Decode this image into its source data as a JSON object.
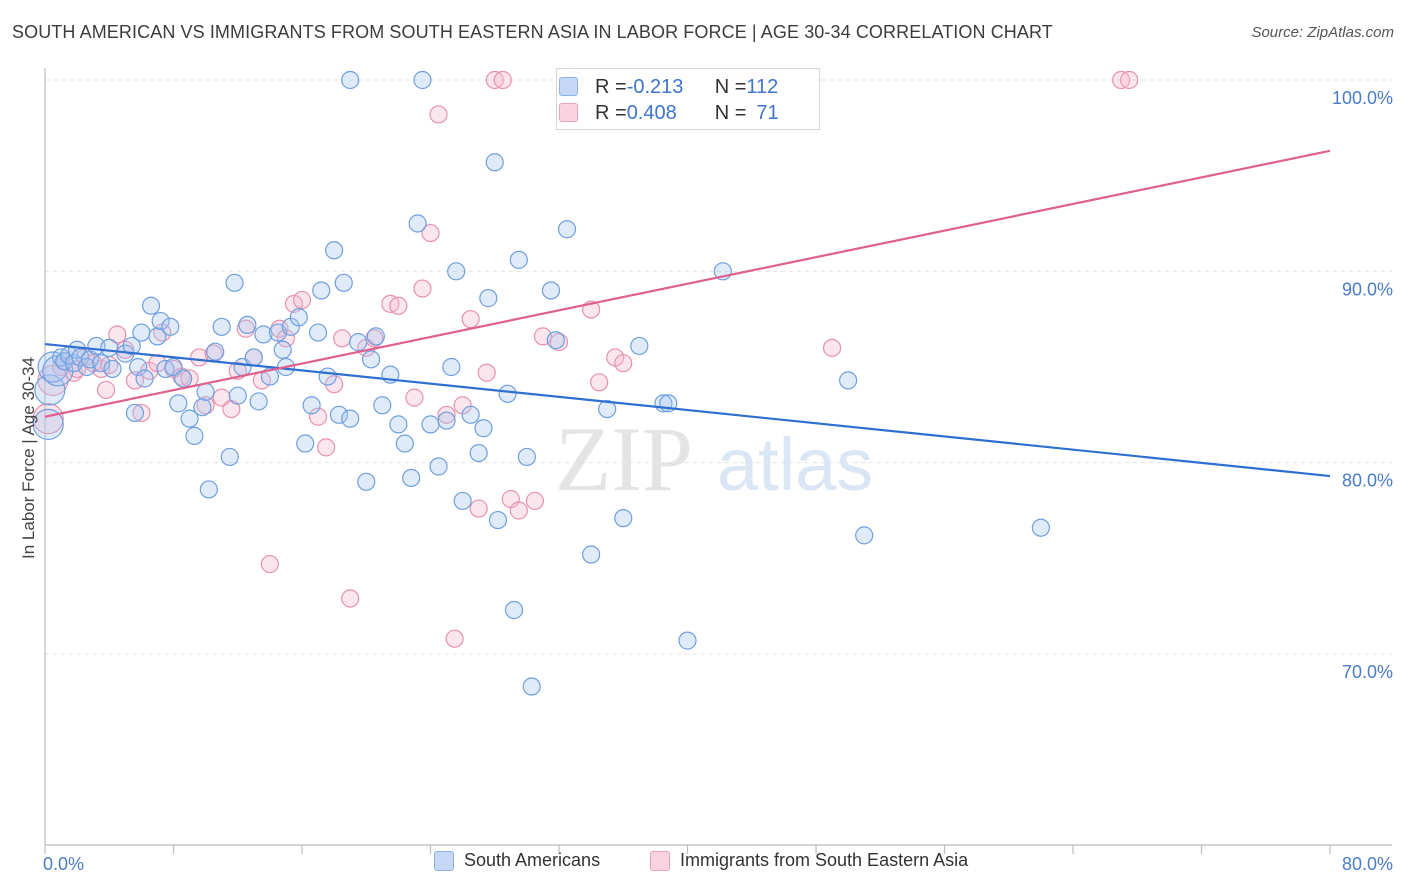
{
  "title": "SOUTH AMERICAN VS IMMIGRANTS FROM SOUTH EASTERN ASIA IN LABOR FORCE | AGE 30-34 CORRELATION CHART",
  "source": "Source: ZipAtlas.com",
  "watermark": {
    "zip": "ZIP",
    "atlas": "atlas"
  },
  "stats": {
    "rows": [
      {
        "r_label": "R = ",
        "r_value": "-0.213",
        "n_label": "N = ",
        "n_value": "112",
        "color": "#a9c6f0"
      },
      {
        "r_label": "R = ",
        "r_value": "0.408",
        "n_label": "N = ",
        "n_value": "71",
        "color": "#f5b6cb"
      }
    ]
  },
  "chart_data": {
    "type": "scatter",
    "ylabel": "In Labor Force | Age 30-34",
    "xlim": [
      0,
      80
    ],
    "ylim": [
      60,
      100
    ],
    "x_tick_labels": [
      "0.0%",
      "80.0%"
    ],
    "y_ticks": [
      {
        "value": 100,
        "label": "100.0%"
      },
      {
        "value": 90,
        "label": "90.0%"
      },
      {
        "value": 80,
        "label": "80.0%"
      },
      {
        "value": 70,
        "label": "70.0%"
      }
    ],
    "grid": true,
    "legend_position": "bottom",
    "series": [
      {
        "name": "South Americans",
        "color": "#6f9fe0",
        "fill": "rgba(167,197,240,0.35)",
        "line_color": "#2f6fd0",
        "trend": {
          "x": [
            0,
            80
          ],
          "y": [
            86.2,
            79.3
          ]
        },
        "points": [
          [
            0.2,
            82
          ],
          [
            0.3,
            83.8
          ],
          [
            0.5,
            85
          ],
          [
            0.8,
            84.8
          ],
          [
            1.0,
            85.5
          ],
          [
            1.2,
            85.3
          ],
          [
            1.5,
            85.6
          ],
          [
            1.8,
            85.2
          ],
          [
            2.0,
            85.9
          ],
          [
            2.2,
            85.5
          ],
          [
            2.6,
            85.0
          ],
          [
            2.8,
            85.4
          ],
          [
            3.2,
            86.1
          ],
          [
            3.5,
            85.2
          ],
          [
            4.0,
            86.0
          ],
          [
            4.2,
            84.9
          ],
          [
            5.0,
            85.7
          ],
          [
            5.4,
            86.1
          ],
          [
            5.6,
            82.6
          ],
          [
            5.8,
            85.0
          ],
          [
            6.0,
            86.8
          ],
          [
            6.2,
            84.4
          ],
          [
            6.6,
            88.2
          ],
          [
            7.0,
            86.6
          ],
          [
            7.2,
            87.4
          ],
          [
            7.5,
            84.9
          ],
          [
            7.8,
            87.1
          ],
          [
            8.0,
            85.0
          ],
          [
            8.3,
            83.1
          ],
          [
            8.6,
            84.4
          ],
          [
            9.0,
            82.3
          ],
          [
            9.3,
            81.4
          ],
          [
            9.8,
            82.9
          ],
          [
            10.0,
            83.7
          ],
          [
            10.2,
            78.6
          ],
          [
            10.6,
            85.8
          ],
          [
            11.0,
            87.1
          ],
          [
            11.5,
            80.3
          ],
          [
            11.8,
            89.4
          ],
          [
            12.0,
            83.5
          ],
          [
            12.3,
            85.0
          ],
          [
            12.6,
            87.2
          ],
          [
            13.0,
            85.5
          ],
          [
            13.3,
            83.2
          ],
          [
            13.6,
            86.7
          ],
          [
            14.0,
            84.5
          ],
          [
            14.5,
            86.8
          ],
          [
            14.8,
            85.9
          ],
          [
            15.0,
            85.0
          ],
          [
            15.3,
            87.1
          ],
          [
            15.8,
            87.6
          ],
          [
            16.2,
            81.0
          ],
          [
            16.6,
            83.0
          ],
          [
            17.0,
            86.8
          ],
          [
            17.2,
            89.0
          ],
          [
            17.6,
            84.5
          ],
          [
            18.0,
            91.1
          ],
          [
            18.3,
            82.5
          ],
          [
            18.6,
            89.4
          ],
          [
            19.0,
            82.3
          ],
          [
            19.5,
            86.3
          ],
          [
            20.0,
            79.0
          ],
          [
            20.3,
            85.4
          ],
          [
            20.6,
            86.6
          ],
          [
            21.0,
            83.0
          ],
          [
            21.5,
            84.6
          ],
          [
            22.0,
            82.0
          ],
          [
            22.4,
            81.0
          ],
          [
            22.8,
            79.2
          ],
          [
            23.2,
            92.5
          ],
          [
            23.5,
            100
          ],
          [
            24.0,
            82.0
          ],
          [
            24.5,
            79.8
          ],
          [
            25.0,
            82.2
          ],
          [
            25.3,
            85.0
          ],
          [
            25.6,
            90.0
          ],
          [
            26.0,
            78.0
          ],
          [
            26.5,
            82.5
          ],
          [
            27.0,
            80.5
          ],
          [
            27.3,
            81.8
          ],
          [
            27.6,
            88.6
          ],
          [
            28.0,
            95.7
          ],
          [
            28.2,
            77.0
          ],
          [
            28.8,
            83.6
          ],
          [
            29.2,
            72.3
          ],
          [
            29.5,
            90.6
          ],
          [
            30.0,
            80.3
          ],
          [
            30.3,
            68.3
          ],
          [
            31.5,
            89.0
          ],
          [
            31.8,
            86.4
          ],
          [
            32.5,
            92.2
          ],
          [
            33.0,
            100
          ],
          [
            34.0,
            75.2
          ],
          [
            35.0,
            82.8
          ],
          [
            36.0,
            77.1
          ],
          [
            37.0,
            86.1
          ],
          [
            38.5,
            83.1
          ],
          [
            38.8,
            83.1
          ],
          [
            40.0,
            70.7
          ],
          [
            42.2,
            90.0
          ],
          [
            50.0,
            84.3
          ],
          [
            51.0,
            76.2
          ],
          [
            62.0,
            76.6
          ],
          [
            19.0,
            100
          ]
        ]
      },
      {
        "name": "Immigrants from South Eastern Asia",
        "color": "#e891ae",
        "fill": "rgba(245,182,203,0.35)",
        "line_color": "#e0608d",
        "trend": {
          "x": [
            0,
            80
          ],
          "y": [
            82.4,
            96.3
          ]
        },
        "points": [
          [
            0.2,
            82.3
          ],
          [
            0.5,
            84.3
          ],
          [
            1.0,
            85.0
          ],
          [
            1.2,
            85.3
          ],
          [
            1.8,
            84.7
          ],
          [
            2.0,
            84.9
          ],
          [
            2.5,
            85.5
          ],
          [
            3.0,
            85.2
          ],
          [
            3.5,
            84.9
          ],
          [
            3.8,
            83.8
          ],
          [
            4.0,
            85.1
          ],
          [
            4.5,
            86.7
          ],
          [
            5.0,
            85.9
          ],
          [
            5.6,
            84.3
          ],
          [
            6.0,
            82.6
          ],
          [
            6.5,
            84.8
          ],
          [
            7.0,
            85.2
          ],
          [
            7.3,
            86.8
          ],
          [
            8.0,
            84.9
          ],
          [
            8.5,
            84.5
          ],
          [
            9.0,
            84.4
          ],
          [
            9.6,
            85.5
          ],
          [
            10.0,
            83.0
          ],
          [
            10.5,
            85.7
          ],
          [
            11.0,
            83.4
          ],
          [
            11.6,
            82.8
          ],
          [
            12.0,
            84.8
          ],
          [
            12.5,
            87.0
          ],
          [
            13.0,
            85.5
          ],
          [
            13.5,
            84.3
          ],
          [
            14.0,
            74.7
          ],
          [
            14.6,
            87.0
          ],
          [
            15.0,
            86.5
          ],
          [
            15.5,
            88.3
          ],
          [
            16.0,
            88.5
          ],
          [
            17.0,
            82.4
          ],
          [
            17.5,
            80.8
          ],
          [
            18.0,
            84.1
          ],
          [
            18.5,
            86.5
          ],
          [
            19.0,
            72.9
          ],
          [
            20.0,
            86.0
          ],
          [
            20.5,
            86.5
          ],
          [
            21.5,
            88.3
          ],
          [
            22.0,
            88.2
          ],
          [
            23.0,
            83.4
          ],
          [
            23.5,
            89.1
          ],
          [
            24.0,
            92.0
          ],
          [
            25.0,
            82.5
          ],
          [
            25.5,
            70.8
          ],
          [
            26.0,
            83.0
          ],
          [
            26.5,
            87.5
          ],
          [
            27.0,
            77.6
          ],
          [
            27.5,
            84.7
          ],
          [
            28.0,
            100
          ],
          [
            28.5,
            100
          ],
          [
            29.0,
            78.1
          ],
          [
            29.5,
            77.5
          ],
          [
            30.5,
            78.0
          ],
          [
            31.0,
            86.6
          ],
          [
            32.0,
            86.3
          ],
          [
            33.0,
            100
          ],
          [
            34.0,
            88.0
          ],
          [
            34.5,
            84.2
          ],
          [
            35.5,
            85.5
          ],
          [
            36.0,
            85.2
          ],
          [
            43.0,
            100
          ],
          [
            44.5,
            100
          ],
          [
            49.0,
            86.0
          ],
          [
            67.0,
            100
          ],
          [
            67.5,
            100
          ],
          [
            24.5,
            98.2
          ]
        ]
      }
    ]
  }
}
